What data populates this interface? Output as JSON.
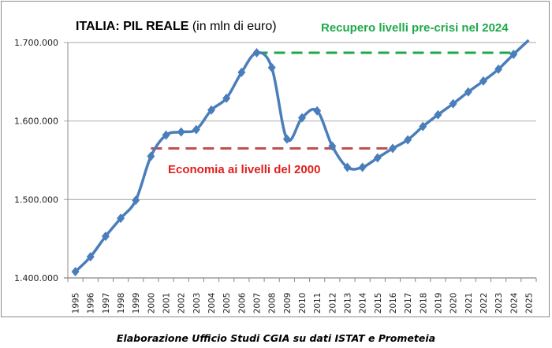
{
  "chart_data": {
    "type": "line",
    "title": "ITALIA: PIL REALE",
    "title_suffix": "(in mln di euro)",
    "xlabel": "",
    "ylabel": "",
    "ylim": [
      1400000,
      1700000
    ],
    "yticks": [
      "1.400.000",
      "1.500.000",
      "1.600.000",
      "1.700.000"
    ],
    "ytick_values": [
      1400000,
      1500000,
      1600000,
      1700000
    ],
    "grid": true,
    "categories": [
      "1995",
      "1996",
      "1997",
      "1998",
      "1999",
      "2000",
      "2001",
      "2002",
      "2003",
      "2004",
      "2005",
      "2006",
      "2007",
      "2008",
      "2009",
      "2010",
      "2011",
      "2012",
      "2013",
      "2014",
      "2015",
      "2016",
      "2017",
      "2018",
      "2019",
      "2020",
      "2021",
      "2022",
      "2023",
      "2024",
      "2025"
    ],
    "series": [
      {
        "color": "#4a7ebb",
        "marker": "diamond",
        "values": [
          1408000,
          1427000,
          1453000,
          1476000,
          1499000,
          1555000,
          1582000,
          1586000,
          1589000,
          1614000,
          1629000,
          1662000,
          1687000,
          1668000,
          1577000,
          1604000,
          1613000,
          1568000,
          1541000,
          1541000,
          1553000,
          1565000,
          1576000,
          1593000,
          1608000,
          1622000,
          1637000,
          1651000,
          1666000,
          1685000,
          1703000
        ]
      }
    ],
    "annotations": [
      {
        "text": "Recupero livelli pre-crisi nel 2024",
        "color": "#1fa84a",
        "line_value": 1687000,
        "from": "2007",
        "to": "2024",
        "style": "dashed"
      },
      {
        "text": "Economia ai livelli del 2000",
        "color": "#e0201e",
        "line_color": "#c0504d",
        "line_value": 1565000,
        "from": "2000",
        "to": "2016",
        "style": "dashed"
      }
    ]
  },
  "footer": "Elaborazione Ufficio Studi CGIA su dati ISTAT e Prometeia"
}
